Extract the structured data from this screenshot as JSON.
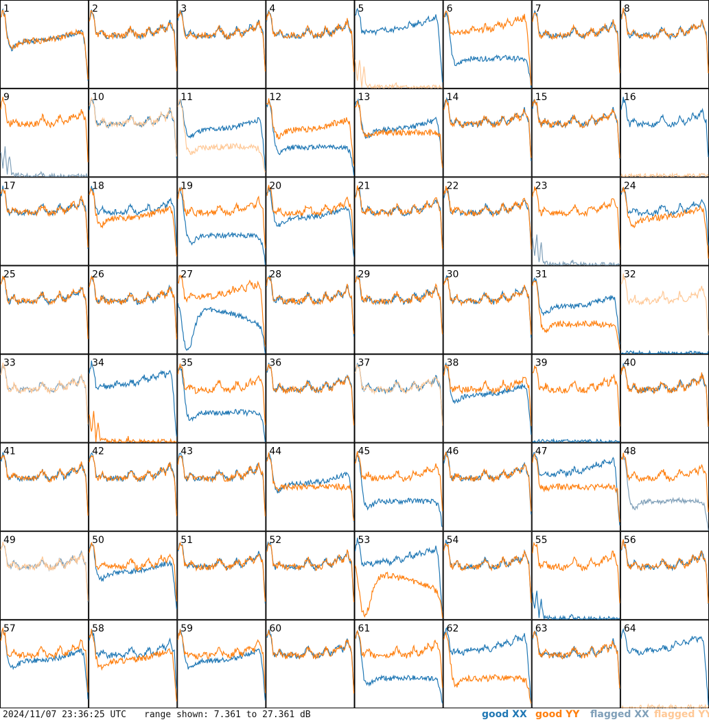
{
  "chart_data": {
    "type": "line",
    "title": "",
    "xlabel": "",
    "ylabel": "",
    "grid": {
      "rows": 8,
      "cols": 8
    },
    "panel_labels": [
      "1",
      "2",
      "3",
      "4",
      "5",
      "6",
      "7",
      "8",
      "9",
      "10",
      "11",
      "12",
      "13",
      "14",
      "15",
      "16",
      "17",
      "18",
      "19",
      "20",
      "21",
      "22",
      "23",
      "24",
      "25",
      "26",
      "27",
      "28",
      "29",
      "30",
      "31",
      "32",
      "33",
      "34",
      "35",
      "36",
      "37",
      "38",
      "39",
      "40",
      "41",
      "42",
      "43",
      "44",
      "45",
      "46",
      "47",
      "48",
      "49",
      "50",
      "51",
      "52",
      "53",
      "54",
      "55",
      "56",
      "57",
      "58",
      "59",
      "60",
      "61",
      "62",
      "63",
      "64"
    ],
    "ylim_db": [
      7.361,
      27.361
    ],
    "series": [
      {
        "name": "good XX",
        "color": "#1f77b4"
      },
      {
        "name": "good YY",
        "color": "#ff7f0e"
      },
      {
        "name": "flagged XX",
        "color": "#7f9fb8"
      },
      {
        "name": "flagged YY",
        "color": "#ffc896"
      }
    ],
    "templates": {
      "normal": [
        0.8,
        0.9,
        0.85,
        0.65,
        0.6,
        0.63,
        0.66,
        0.63,
        0.6,
        0.6,
        0.61,
        0.61,
        0.62,
        0.61,
        0.6,
        0.6,
        0.61,
        0.62,
        0.66,
        0.7,
        0.66,
        0.62,
        0.6,
        0.6,
        0.61,
        0.61,
        0.64,
        0.7,
        0.66,
        0.62,
        0.63,
        0.66,
        0.68,
        0.72,
        0.7,
        0.67,
        0.72,
        0.78,
        0.7,
        0.64,
        0.2
      ],
      "low": [
        0.82,
        0.88,
        0.8,
        0.55,
        0.35,
        0.28,
        0.26,
        0.28,
        0.3,
        0.32,
        0.33,
        0.34,
        0.34,
        0.34,
        0.34,
        0.34,
        0.34,
        0.34,
        0.34,
        0.34,
        0.34,
        0.34,
        0.34,
        0.35,
        0.35,
        0.35,
        0.35,
        0.35,
        0.35,
        0.35,
        0.35,
        0.34,
        0.34,
        0.34,
        0.34,
        0.34,
        0.33,
        0.32,
        0.3,
        0.2,
        0.02
      ],
      "mid": [
        0.82,
        0.9,
        0.82,
        0.6,
        0.5,
        0.46,
        0.47,
        0.49,
        0.51,
        0.52,
        0.53,
        0.54,
        0.54,
        0.54,
        0.55,
        0.55,
        0.55,
        0.55,
        0.55,
        0.55,
        0.56,
        0.56,
        0.56,
        0.57,
        0.57,
        0.57,
        0.58,
        0.58,
        0.59,
        0.6,
        0.61,
        0.62,
        0.62,
        0.63,
        0.64,
        0.64,
        0.65,
        0.66,
        0.62,
        0.4,
        0.1
      ],
      "flat": [
        0.8,
        0.88,
        0.82,
        0.58,
        0.5,
        0.48,
        0.49,
        0.5,
        0.5,
        0.51,
        0.51,
        0.51,
        0.51,
        0.51,
        0.51,
        0.51,
        0.51,
        0.51,
        0.51,
        0.51,
        0.51,
        0.51,
        0.51,
        0.51,
        0.51,
        0.51,
        0.51,
        0.51,
        0.51,
        0.51,
        0.51,
        0.51,
        0.51,
        0.51,
        0.51,
        0.51,
        0.51,
        0.5,
        0.49,
        0.45,
        0.08
      ],
      "dropoff": [
        0.82,
        0.92,
        0.86,
        0.66,
        0.64,
        0.66,
        0.67,
        0.65,
        0.64,
        0.64,
        0.65,
        0.66,
        0.67,
        0.7,
        0.68,
        0.66,
        0.66,
        0.67,
        0.68,
        0.72,
        0.7,
        0.68,
        0.68,
        0.7,
        0.72,
        0.76,
        0.74,
        0.72,
        0.74,
        0.78,
        0.76,
        0.74,
        0.78,
        0.82,
        0.8,
        0.78,
        0.8,
        0.84,
        0.74,
        0.4,
        0.05
      ],
      "bump": [
        0.6,
        0.5,
        0.3,
        0.12,
        0.05,
        0.06,
        0.12,
        0.22,
        0.32,
        0.4,
        0.45,
        0.48,
        0.5,
        0.51,
        0.51,
        0.51,
        0.5,
        0.5,
        0.49,
        0.49,
        0.48,
        0.48,
        0.47,
        0.47,
        0.46,
        0.46,
        0.45,
        0.44,
        0.44,
        0.43,
        0.42,
        0.41,
        0.4,
        0.39,
        0.38,
        0.37,
        0.35,
        0.33,
        0.3,
        0.2,
        0.02
      ],
      "baseline": [
        0.3,
        0.1,
        0.35,
        0.02,
        0.25,
        0.01,
        0.02,
        0.01,
        0.01,
        0.0,
        0.01,
        0.0,
        0.0,
        0.0,
        0.01,
        0.0,
        0.0,
        0.0,
        0.05,
        0.02,
        0.0,
        0.0,
        0.0,
        0.0,
        0.0,
        0.0,
        0.0,
        0.0,
        0.0,
        0.0,
        0.0,
        0.0,
        0.0,
        0.0,
        0.0,
        0.0,
        0.0,
        0.0,
        0.0,
        0.0,
        0.0
      ],
      "spike": [
        0.0,
        0.0,
        0.0,
        0.0,
        0.0,
        0.0,
        0.0,
        0.0,
        0.0,
        0.0,
        0.0,
        0.0,
        0.0,
        0.0,
        0.0,
        0.0,
        0.0,
        0.0,
        0.0,
        0.0,
        0.0,
        0.0,
        0.0,
        0.0,
        0.0,
        0.0,
        0.0,
        0.0,
        0.0,
        0.0,
        0.0,
        0.0,
        0.0,
        0.0,
        0.0,
        0.0,
        0.0,
        0.0,
        0.0,
        0.0,
        0.0
      ]
    },
    "panels": [
      {
        "xx": "mid",
        "yy": "mid"
      },
      {
        "xx": "normal",
        "yy": "normal"
      },
      {
        "xx": "normal",
        "yy": "normal"
      },
      {
        "xx": "normal",
        "yy": "normal"
      },
      {
        "xx": "dropoff",
        "yy": "baseline",
        "yy_flagged": true
      },
      {
        "xx": "low",
        "yy": "dropoff"
      },
      {
        "xx": "normal",
        "yy": "normal"
      },
      {
        "xx": "normal",
        "yy": "normal"
      },
      {
        "xx": "baseline",
        "xx_flagged": true,
        "yy": "normal"
      },
      {
        "xx": "normal",
        "yy": "normal",
        "yy_flagged": true
      },
      {
        "xx": "mid",
        "yy": "low",
        "yy_flagged": true
      },
      {
        "xx": "low",
        "yy": "mid"
      },
      {
        "xx": "mid",
        "yy": "flat"
      },
      {
        "xx": "normal",
        "yy": "normal"
      },
      {
        "xx": "normal",
        "yy": "normal"
      },
      {
        "xx": "normal",
        "yy": "spike",
        "yy_flagged": true
      },
      {
        "xx": "normal",
        "yy": "normal"
      },
      {
        "xx": "normal",
        "yy": "mid"
      },
      {
        "xx": "low",
        "yy": "normal"
      },
      {
        "xx": "mid",
        "yy": "normal"
      },
      {
        "xx": "normal",
        "yy": "normal"
      },
      {
        "xx": "normal",
        "yy": "normal"
      },
      {
        "xx": "baseline",
        "xx_flagged": true,
        "yy": "normal"
      },
      {
        "xx": "normal",
        "yy": "mid"
      },
      {
        "xx": "normal",
        "yy": "normal"
      },
      {
        "xx": "normal",
        "yy": "normal"
      },
      {
        "xx": "bump",
        "yy": "dropoff"
      },
      {
        "xx": "normal",
        "yy": "normal"
      },
      {
        "xx": "normal",
        "yy": "normal"
      },
      {
        "xx": "normal",
        "yy": "normal"
      },
      {
        "xx": "mid",
        "yy": "low"
      },
      {
        "xx": "spike",
        "yy": "normal",
        "yy_flagged": true
      },
      {
        "xx": "normal",
        "xx_flagged": true,
        "yy": "normal",
        "yy_flagged": true
      },
      {
        "xx": "dropoff",
        "yy": "baseline"
      },
      {
        "xx": "low",
        "yy": "normal"
      },
      {
        "xx": "normal",
        "yy": "normal"
      },
      {
        "xx": "normal",
        "yy": "normal",
        "yy_flagged": true
      },
      {
        "xx": "mid",
        "yy": "normal"
      },
      {
        "xx": "spike",
        "yy": "normal"
      },
      {
        "xx": "normal",
        "yy": "normal"
      },
      {
        "xx": "normal",
        "yy": "normal"
      },
      {
        "xx": "normal",
        "yy": "normal"
      },
      {
        "xx": "normal",
        "yy": "normal"
      },
      {
        "xx": "mid",
        "yy": "flat"
      },
      {
        "xx": "low",
        "yy": "normal"
      },
      {
        "xx": "normal",
        "yy": "normal"
      },
      {
        "xx": "dropoff",
        "yy": "flat"
      },
      {
        "xx": "low",
        "xx_flagged": true,
        "yy": "normal"
      },
      {
        "xx": "normal",
        "xx_flagged": true,
        "yy": "normal",
        "yy_flagged": true
      },
      {
        "xx": "mid",
        "yy": "normal"
      },
      {
        "xx": "normal",
        "yy": "normal"
      },
      {
        "xx": "normal",
        "yy": "normal"
      },
      {
        "xx": "dropoff",
        "yy": "bump"
      },
      {
        "xx": "normal",
        "yy": "normal"
      },
      {
        "xx": "baseline",
        "yy": "normal"
      },
      {
        "xx": "normal",
        "yy": "normal"
      },
      {
        "xx": "mid",
        "yy": "normal"
      },
      {
        "xx": "normal",
        "yy": "mid"
      },
      {
        "xx": "mid",
        "yy": "normal"
      },
      {
        "xx": "normal",
        "yy": "normal"
      },
      {
        "xx": "low",
        "yy": "normal"
      },
      {
        "xx": "dropoff",
        "yy": "low"
      },
      {
        "xx": "normal",
        "yy": "normal"
      },
      {
        "xx": "dropoff",
        "yy": "spike",
        "yy_flagged": true
      }
    ]
  },
  "footer": {
    "timestamp": "2024/11/07 23:36:25 UTC",
    "range": "range shown: 7.361 to 27.361 dB"
  },
  "legend": {
    "good_xx": {
      "label": "good XX",
      "color": "#1f77b4"
    },
    "good_yy": {
      "label": "good YY",
      "color": "#ff7f0e"
    },
    "flagged_xx": {
      "label": "flagged XX",
      "color": "#7f9fb8"
    },
    "flagged_yy": {
      "label": "flagged YY",
      "color": "#ffc896"
    }
  }
}
